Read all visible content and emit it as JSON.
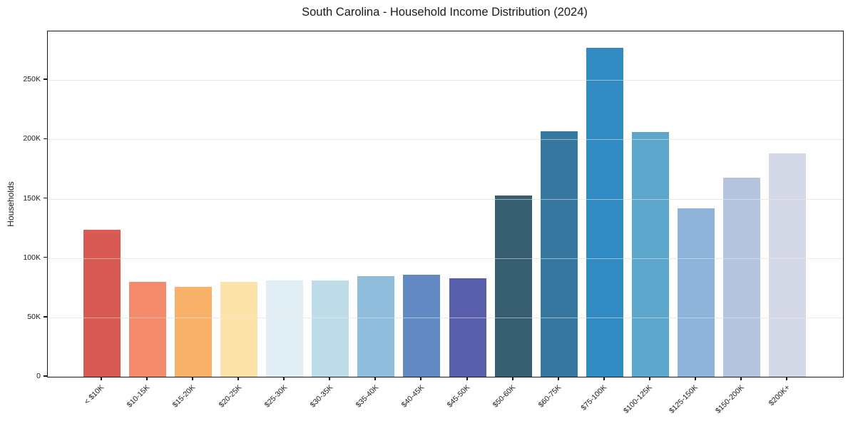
{
  "chart_data": {
    "type": "bar",
    "title": "South Carolina - Household Income Distribution (2024)",
    "xlabel": "",
    "ylabel": "Households",
    "categories": [
      "< $10K",
      "$10-15K",
      "$15-20K",
      "$20-25K",
      "$25-30K",
      "$30-35K",
      "$35-40K",
      "$40-45K",
      "$45-50K",
      "$50-60K",
      "$60-75K",
      "$75-100K",
      "$100-125K",
      "$125-150K",
      "$150-200K",
      "$200K+"
    ],
    "values": [
      124000,
      80000,
      76000,
      80000,
      81000,
      81000,
      85000,
      86000,
      83000,
      153000,
      207000,
      277000,
      206000,
      142000,
      168000,
      188000
    ],
    "bar_colors": [
      "#d95a54",
      "#f48b6c",
      "#f9b169",
      "#fce3a9",
      "#e1eff4",
      "#bfdde9",
      "#90bcdb",
      "#6289c4",
      "#5a5fac",
      "#375d70",
      "#35779e",
      "#338bc3",
      "#5da7cd",
      "#8fb4da",
      "#b4c4de",
      "#d4d7e6"
    ],
    "ytick_labels": [
      "0",
      "50K",
      "100K",
      "150K",
      "200K",
      "250K"
    ],
    "ytick_values": [
      0,
      50000,
      100000,
      150000,
      200000,
      250000
    ],
    "ylim": [
      0,
      291000
    ],
    "grid": "horizontal",
    "legend": "none",
    "spine_color": "#1a1a1a",
    "grid_color": "#e7e7e7",
    "background_color": "#ffffff"
  }
}
